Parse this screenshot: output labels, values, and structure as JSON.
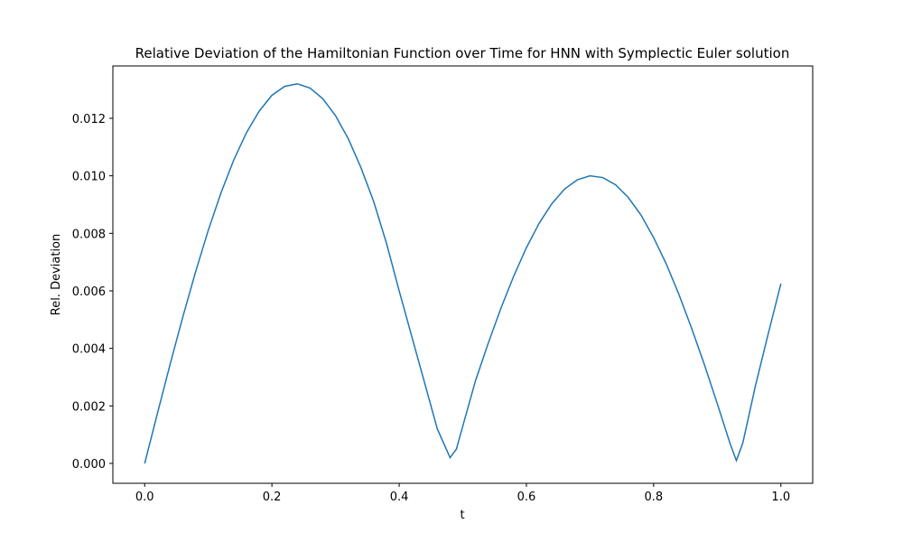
{
  "chart_data": {
    "type": "line",
    "title": "Relative Deviation of the Hamiltonian Function over Time for HNN with Symplectic Euler solution",
    "x_label": "t",
    "y_label": "Rel. Deviation",
    "x": [
      0,
      0.02,
      0.04,
      0.06,
      0.08,
      0.1,
      0.12,
      0.14,
      0.16,
      0.18,
      0.2,
      0.22,
      0.24,
      0.26,
      0.28,
      0.3,
      0.32,
      0.34,
      0.36,
      0.38,
      0.4,
      0.42,
      0.44,
      0.46,
      0.48,
      0.49,
      0.5,
      0.52,
      0.54,
      0.56,
      0.58,
      0.6,
      0.62,
      0.64,
      0.66,
      0.68,
      0.7,
      0.72,
      0.74,
      0.76,
      0.78,
      0.8,
      0.82,
      0.84,
      0.86,
      0.88,
      0.9,
      0.92,
      0.93,
      0.94,
      0.96,
      0.98,
      1.0
    ],
    "series": [
      {
        "name": "Rel. Deviation",
        "color": "#1f77b4",
        "values": [
          0,
          0.00174,
          0.00345,
          0.0051,
          0.00666,
          0.00811,
          0.00941,
          0.01055,
          0.0115,
          0.01225,
          0.0128,
          0.01311,
          0.0132,
          0.01305,
          0.01268,
          0.01209,
          0.01129,
          0.01028,
          0.0091,
          0.00766,
          0.006,
          0.0044,
          0.0028,
          0.0012,
          0.0002,
          0.0005,
          0.0013,
          0.00288,
          0.00418,
          0.0054,
          0.00651,
          0.0075,
          0.00835,
          0.00903,
          0.00954,
          0.00986,
          0.01,
          0.00994,
          0.00969,
          0.00925,
          0.00864,
          0.00785,
          0.00693,
          0.00586,
          0.00468,
          0.00342,
          0.00208,
          0.0007,
          0.0001,
          0.0007,
          0.0027,
          0.0045,
          0.00625
        ]
      }
    ],
    "xlim": [
      -0.05,
      1.05
    ],
    "xticks": [
      {
        "value": 0,
        "label": "0.0"
      },
      0.2,
      0.4,
      0.6,
      0.8,
      {
        "value": 1,
        "label": "1.0"
      }
    ],
    "ylim": [
      -0.00069,
      0.01382
    ],
    "yticks": [
      {
        "value": 0,
        "label": "0.000"
      },
      0.002,
      0.004,
      0.006,
      0.008,
      {
        "value": 0.01,
        "label": "0.010"
      },
      {
        "value": 0.012,
        "label": "0.012"
      }
    ],
    "grid": false
  }
}
